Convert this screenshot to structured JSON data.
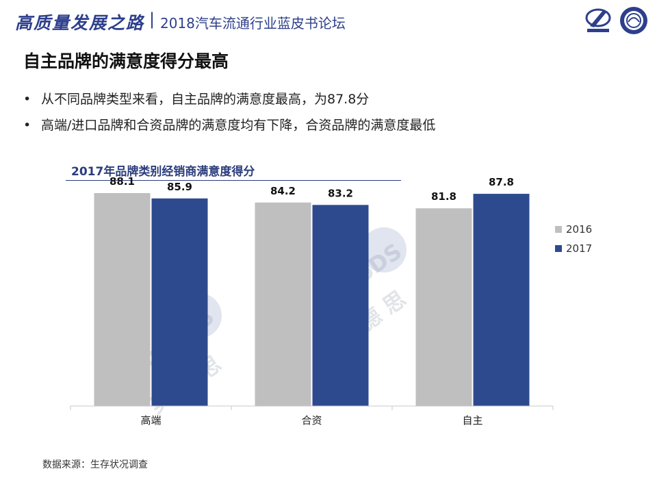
{
  "header": {
    "calligraphy": "高质量发展之路",
    "separator": "|",
    "subtitle": "2018汽车流通行业蓝皮书论坛"
  },
  "page_title": "自主品牌的满意度得分最高",
  "bullets": [
    "从不同品牌类型来看，自主品牌的满意度最高，为87.8分",
    "高端/进口品牌和合资品牌的满意度均有下降，合资品牌的满意度最低"
  ],
  "bullet_marker": "•",
  "source": "数据来源：生存状况调查",
  "watermark": {
    "brand": "AutoDS",
    "cn": "奥 德 思"
  },
  "colors": {
    "brand_blue": "#2d3f8c",
    "series_2016": "#bfbfbf",
    "series_2017": "#2e4a8f"
  },
  "chart_data": {
    "type": "bar",
    "title": "2017年品牌类别经销商满意度得分",
    "categories": [
      "高端",
      "合资",
      "自主"
    ],
    "series": [
      {
        "name": "2016",
        "values": [
          88.1,
          84.2,
          81.8
        ],
        "color": "#bfbfbf"
      },
      {
        "name": "2017",
        "values": [
          85.9,
          83.2,
          87.8
        ],
        "color": "#2e4a8f"
      }
    ],
    "data_labels": [
      [
        "88.1",
        "84.2",
        "81.8"
      ],
      [
        "85.9",
        "83.2",
        "87.8"
      ]
    ],
    "ylim": [
      0,
      100
    ],
    "grid": false,
    "legend": "right"
  }
}
